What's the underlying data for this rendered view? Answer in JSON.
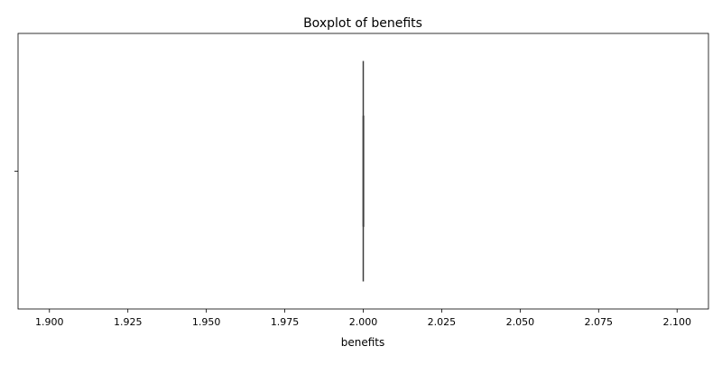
{
  "chart_data": {
    "type": "boxplot",
    "title": "Boxplot of benefits",
    "xlabel": "benefits",
    "ylabel": "",
    "orientation": "horizontal",
    "xlim": [
      1.89,
      2.11
    ],
    "xticks": [
      1.9,
      1.925,
      1.95,
      1.975,
      2.0,
      2.025,
      2.05,
      2.075,
      2.1
    ],
    "xtick_labels": [
      "1.900",
      "1.925",
      "1.950",
      "1.975",
      "2.000",
      "2.025",
      "2.050",
      "2.075",
      "2.100"
    ],
    "yticks": [
      ""
    ],
    "grid": false,
    "boxes": [
      {
        "whisker_low": 2.0,
        "q1": 2.0,
        "median": 2.0,
        "q3": 2.0,
        "whisker_high": 2.0
      }
    ],
    "colors": {
      "box_edge": "#3d3d3d",
      "axes": "#000000"
    }
  }
}
